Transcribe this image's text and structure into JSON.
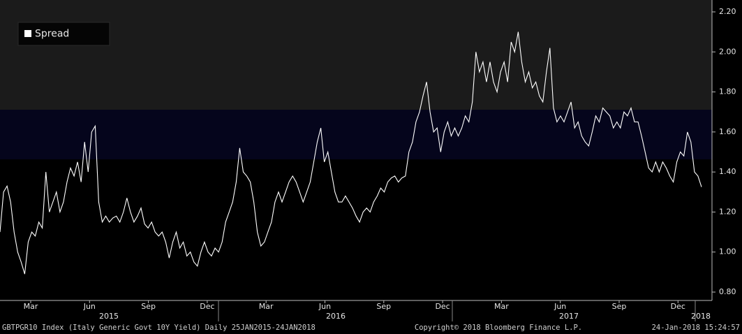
{
  "chart_data": {
    "type": "line",
    "series": [
      {
        "name": "Spread",
        "color": "#ffffff",
        "values": [
          1.1,
          1.3,
          1.33,
          1.25,
          1.1,
          1.0,
          0.95,
          0.89,
          1.05,
          1.1,
          1.08,
          1.15,
          1.12,
          1.4,
          1.2,
          1.25,
          1.3,
          1.2,
          1.25,
          1.35,
          1.42,
          1.38,
          1.45,
          1.35,
          1.55,
          1.4,
          1.6,
          1.63,
          1.25,
          1.15,
          1.18,
          1.15,
          1.17,
          1.18,
          1.15,
          1.2,
          1.27,
          1.2,
          1.15,
          1.18,
          1.22,
          1.14,
          1.12,
          1.15,
          1.1,
          1.08,
          1.1,
          1.05,
          0.97,
          1.05,
          1.1,
          1.02,
          1.05,
          0.98,
          1.0,
          0.95,
          0.93,
          1.0,
          1.05,
          1.0,
          0.98,
          1.02,
          1.0,
          1.05,
          1.15,
          1.2,
          1.25,
          1.35,
          1.52,
          1.4,
          1.38,
          1.35,
          1.25,
          1.1,
          1.03,
          1.05,
          1.1,
          1.15,
          1.25,
          1.3,
          1.25,
          1.3,
          1.35,
          1.38,
          1.35,
          1.3,
          1.25,
          1.3,
          1.35,
          1.45,
          1.55,
          1.62,
          1.45,
          1.5,
          1.4,
          1.3,
          1.25,
          1.25,
          1.28,
          1.25,
          1.22,
          1.18,
          1.15,
          1.2,
          1.22,
          1.2,
          1.25,
          1.28,
          1.32,
          1.3,
          1.35,
          1.37,
          1.38,
          1.35,
          1.37,
          1.38,
          1.5,
          1.55,
          1.65,
          1.7,
          1.78,
          1.85,
          1.7,
          1.6,
          1.62,
          1.5,
          1.6,
          1.65,
          1.58,
          1.62,
          1.58,
          1.62,
          1.68,
          1.65,
          1.75,
          2.0,
          1.9,
          1.95,
          1.85,
          1.95,
          1.85,
          1.8,
          1.9,
          1.95,
          1.85,
          2.05,
          2.0,
          2.1,
          1.95,
          1.85,
          1.9,
          1.82,
          1.85,
          1.78,
          1.75,
          1.9,
          2.02,
          1.72,
          1.65,
          1.68,
          1.65,
          1.7,
          1.75,
          1.62,
          1.65,
          1.58,
          1.55,
          1.53,
          1.6,
          1.68,
          1.65,
          1.72,
          1.7,
          1.68,
          1.62,
          1.65,
          1.62,
          1.7,
          1.68,
          1.72,
          1.65,
          1.65,
          1.58,
          1.5,
          1.42,
          1.4,
          1.45,
          1.4,
          1.45,
          1.42,
          1.38,
          1.35,
          1.45,
          1.5,
          1.48,
          1.6,
          1.55,
          1.4,
          1.38,
          1.325
        ]
      }
    ],
    "ylim": [
      0.8,
      2.2
    ],
    "yticks": [
      {
        "value": 0.8,
        "label": "0.80"
      },
      {
        "value": 1.0,
        "label": "1.00"
      },
      {
        "value": 1.2,
        "label": "1.20"
      },
      {
        "value": 1.4,
        "label": "1.40"
      },
      {
        "value": 1.6,
        "label": "1.60"
      },
      {
        "value": 1.8,
        "label": "1.80"
      },
      {
        "value": 2.0,
        "label": "2.00"
      },
      {
        "value": 2.2,
        "label": "2.20"
      }
    ],
    "x_tick_labels": [
      "Mar",
      "Jun",
      "Sep",
      "Dec",
      "Mar",
      "Jun",
      "Sep",
      "Dec",
      "Mar",
      "Jun",
      "Sep",
      "Dec"
    ],
    "year_labels": [
      "2015",
      "2016",
      "2017",
      "2018"
    ],
    "grid": false,
    "footer_left": "GBTPGR10 Index (Italy Generic Govt 10Y Yield)  Daily 25JAN2015-24JAN2018",
    "footer_center": "Copyright© 2018 Bloomberg Finance L.P.",
    "footer_right": "24-Jan-2018 15:24:57"
  }
}
